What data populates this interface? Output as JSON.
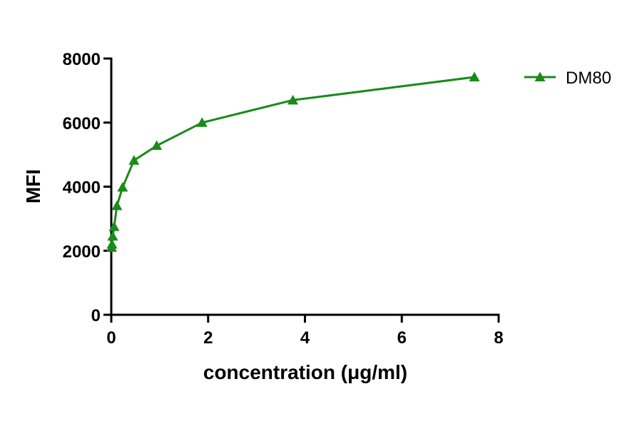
{
  "chart_data": {
    "type": "line",
    "xlabel": "concentration (μg/ml)",
    "ylabel": "MFI",
    "xlim": [
      0,
      8
    ],
    "ylim": [
      0,
      8000
    ],
    "x_ticks": [
      "0",
      "2",
      "4",
      "6",
      "8"
    ],
    "y_ticks": [
      "0",
      "2000",
      "4000",
      "6000",
      "8000"
    ],
    "grid": false,
    "legend_position": "top-right",
    "series": [
      {
        "name": "DM80",
        "color": "#1a8a1a",
        "marker": "triangle",
        "x": [
          0.0073,
          0.0146,
          0.0293,
          0.0586,
          0.117,
          0.234,
          0.469,
          0.938,
          1.875,
          3.75,
          7.5
        ],
        "y": [
          2100,
          2200,
          2450,
          2750,
          3400,
          3980,
          4820,
          5280,
          6000,
          6700,
          7420
        ]
      }
    ]
  }
}
